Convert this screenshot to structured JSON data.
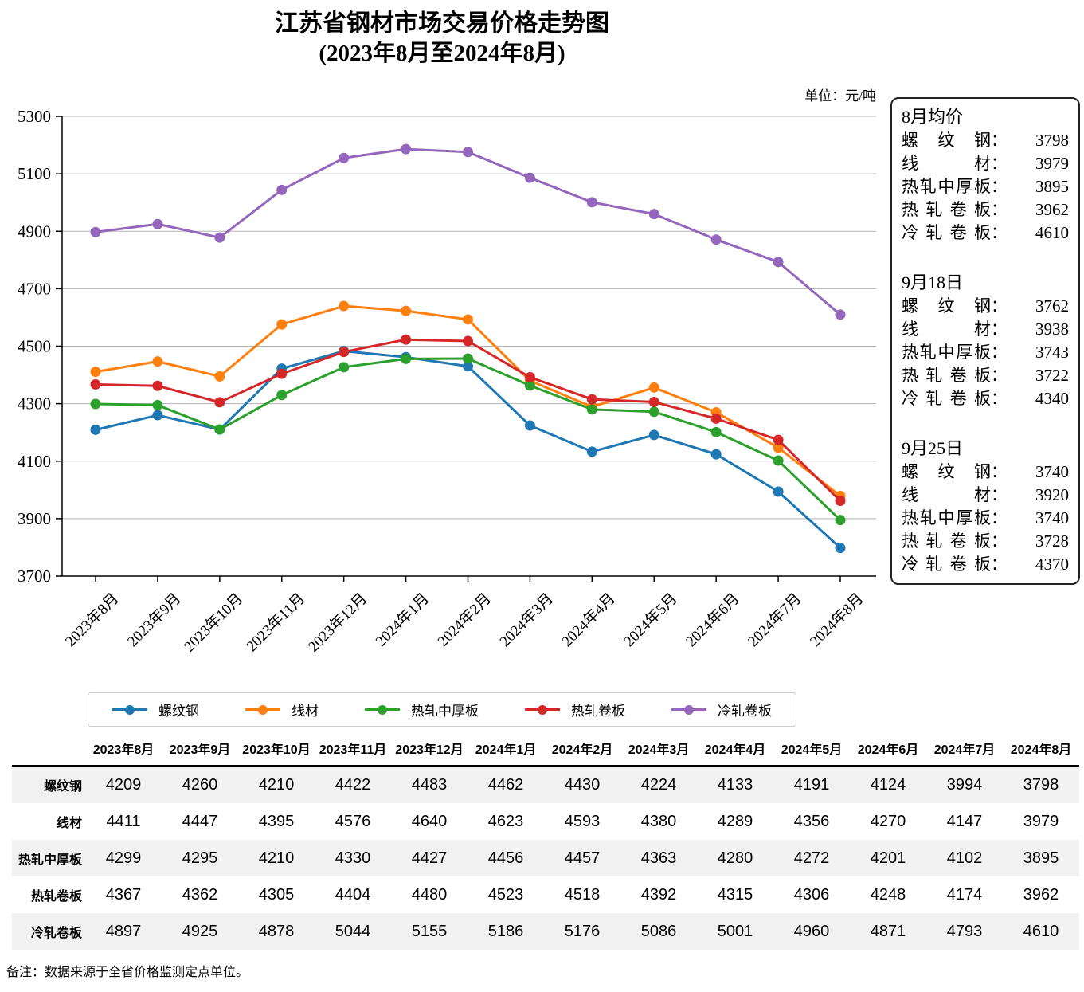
{
  "title": {
    "line1": "江苏省钢材市场交易价格走势图",
    "line2": "(2023年8月至2024年8月)"
  },
  "unit_label": "单位：元/吨",
  "chart_data": {
    "type": "line",
    "categories": [
      "2023年8月",
      "2023年9月",
      "2023年10月",
      "2023年11月",
      "2023年12月",
      "2024年1月",
      "2024年2月",
      "2024年3月",
      "2024年4月",
      "2024年5月",
      "2024年6月",
      "2024年7月",
      "2024年8月"
    ],
    "series": [
      {
        "name": "螺纹钢",
        "color": "#1f77b4",
        "values": [
          4209,
          4260,
          4210,
          4422,
          4483,
          4462,
          4430,
          4224,
          4133,
          4191,
          4124,
          3994,
          3798
        ]
      },
      {
        "name": "线材",
        "color": "#ff7f0e",
        "values": [
          4411,
          4447,
          4395,
          4576,
          4640,
          4623,
          4593,
          4380,
          4289,
          4356,
          4270,
          4147,
          3979
        ]
      },
      {
        "name": "热轧中厚板",
        "color": "#2ca02c",
        "values": [
          4299,
          4295,
          4210,
          4330,
          4427,
          4456,
          4457,
          4363,
          4280,
          4272,
          4201,
          4102,
          3895
        ]
      },
      {
        "name": "热轧卷板",
        "color": "#d62728",
        "values": [
          4367,
          4362,
          4305,
          4404,
          4480,
          4523,
          4518,
          4392,
          4315,
          4306,
          4248,
          4174,
          3962
        ]
      },
      {
        "name": "冷轧卷板",
        "color": "#9467bd",
        "values": [
          4897,
          4925,
          4878,
          5044,
          5155,
          5186,
          5176,
          5086,
          5001,
          4960,
          4871,
          4793,
          4610
        ]
      }
    ],
    "title": "江苏省钢材市场交易价格走势图 (2023年8月至2024年8月)",
    "xlabel": "",
    "ylabel": "",
    "ylim": [
      3700,
      5300
    ],
    "ytick_step": 200,
    "grid": true,
    "legend_position": "bottom"
  },
  "side_panel": {
    "blocks": [
      {
        "heading": "8月均价",
        "rows": [
          {
            "label": "螺纹钢",
            "value": "3798"
          },
          {
            "label": "线材",
            "value": "3979"
          },
          {
            "label": "热轧中厚板",
            "value": "3895"
          },
          {
            "label": "热轧卷板",
            "value": "3962"
          },
          {
            "label": "冷轧卷板",
            "value": "4610"
          }
        ]
      },
      {
        "heading": "9月18日",
        "rows": [
          {
            "label": "螺纹钢",
            "value": "3762"
          },
          {
            "label": "线材",
            "value": "3938"
          },
          {
            "label": "热轧中厚板",
            "value": "3743"
          },
          {
            "label": "热轧卷板",
            "value": "3722"
          },
          {
            "label": "冷轧卷板",
            "value": "4340"
          }
        ]
      },
      {
        "heading": "9月25日",
        "rows": [
          {
            "label": "螺纹钢",
            "value": "3740"
          },
          {
            "label": "线材",
            "value": "3920"
          },
          {
            "label": "热轧中厚板",
            "value": "3740"
          },
          {
            "label": "热轧卷板",
            "value": "3728"
          },
          {
            "label": "冷轧卷板",
            "value": "4370"
          }
        ]
      }
    ]
  },
  "table": {
    "corner_header": "",
    "columns": [
      "2023年8月",
      "2023年9月",
      "2023年10月",
      "2023年11月",
      "2023年12月",
      "2024年1月",
      "2024年2月",
      "2024年3月",
      "2024年4月",
      "2024年5月",
      "2024年6月",
      "2024年7月",
      "2024年8月"
    ],
    "rows": [
      {
        "label": "螺纹钢",
        "values": [
          4209,
          4260,
          4210,
          4422,
          4483,
          4462,
          4430,
          4224,
          4133,
          4191,
          4124,
          3994,
          3798
        ]
      },
      {
        "label": "线材",
        "values": [
          4411,
          4447,
          4395,
          4576,
          4640,
          4623,
          4593,
          4380,
          4289,
          4356,
          4270,
          4147,
          3979
        ]
      },
      {
        "label": "热轧中厚板",
        "values": [
          4299,
          4295,
          4210,
          4330,
          4427,
          4456,
          4457,
          4363,
          4280,
          4272,
          4201,
          4102,
          3895
        ]
      },
      {
        "label": "热轧卷板",
        "values": [
          4367,
          4362,
          4305,
          4404,
          4480,
          4523,
          4518,
          4392,
          4315,
          4306,
          4248,
          4174,
          3962
        ]
      },
      {
        "label": "冷轧卷板",
        "values": [
          4897,
          4925,
          4878,
          5044,
          5155,
          5186,
          5176,
          5086,
          5001,
          4960,
          4871,
          4793,
          4610
        ]
      }
    ]
  },
  "footnote": "备注：数据来源于全省价格监测定点单位。",
  "colors": {
    "grid": "#b3b3b3",
    "axis": "#000000",
    "table_stripe": "#f1f1f1",
    "legend_border": "#cccccc"
  }
}
